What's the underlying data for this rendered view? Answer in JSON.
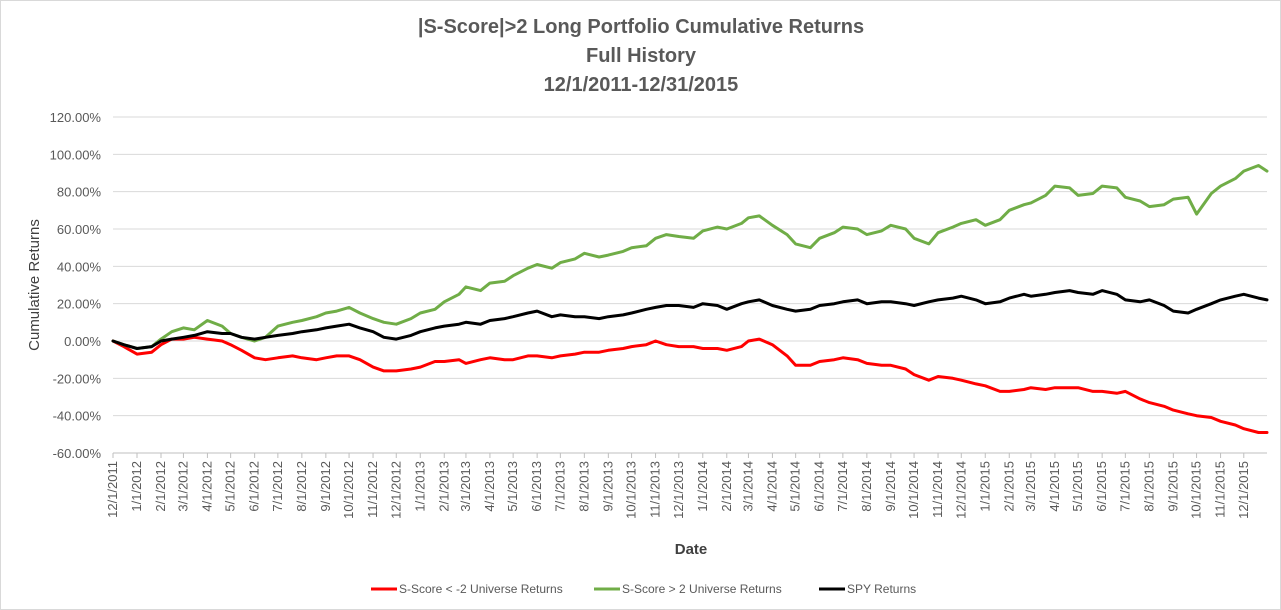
{
  "chart_data": {
    "type": "line",
    "title": [
      "|S-Score|>2 Long Portfolio Cumulative Returns",
      "Full History",
      "12/1/2011-12/31/2015"
    ],
    "xlabel": "Date",
    "ylabel": "Cumulative Returns",
    "ylim": [
      -0.6,
      1.2
    ],
    "yticks": [
      -0.6,
      -0.4,
      -0.2,
      0.0,
      0.2,
      0.4,
      0.6,
      0.8,
      1.0,
      1.2
    ],
    "ytick_labels": [
      "-60.00%",
      "-40.00%",
      "-20.00%",
      "0.00%",
      "20.00%",
      "40.00%",
      "60.00%",
      "80.00%",
      "100.00%",
      "120.00%"
    ],
    "xlim": [
      "12/1/2011",
      "12/31/2015"
    ],
    "xtick_labels": [
      "12/1/2011",
      "1/1/2012",
      "2/1/2012",
      "3/1/2012",
      "4/1/2012",
      "5/1/2012",
      "6/1/2012",
      "7/1/2012",
      "8/1/2012",
      "9/1/2012",
      "10/1/2012",
      "11/1/2012",
      "12/1/2012",
      "1/1/2013",
      "2/1/2013",
      "3/1/2013",
      "4/1/2013",
      "5/1/2013",
      "6/1/2013",
      "7/1/2013",
      "8/1/2013",
      "9/1/2013",
      "10/1/2013",
      "11/1/2013",
      "12/1/2013",
      "1/1/2014",
      "2/1/2014",
      "3/1/2014",
      "4/1/2014",
      "5/1/2014",
      "6/1/2014",
      "7/1/2014",
      "8/1/2014",
      "9/1/2014",
      "10/1/2014",
      "11/1/2014",
      "12/1/2014",
      "1/1/2015",
      "2/1/2015",
      "3/1/2015",
      "4/1/2015",
      "5/1/2015",
      "6/1/2015",
      "7/1/2015",
      "8/1/2015",
      "9/1/2015",
      "10/1/2015",
      "11/1/2015",
      "12/1/2015"
    ],
    "grid": true,
    "legend_position": "bottom",
    "series": [
      {
        "name": "S-Score < -2 Universe Returns",
        "color": "#ff0000",
        "x": [
          "12/1/2011",
          "12/15/2011",
          "1/1/2012",
          "1/20/2012",
          "2/1/2012",
          "2/15/2012",
          "3/1/2012",
          "3/15/2012",
          "4/1/2012",
          "4/20/2012",
          "5/1/2012",
          "5/15/2012",
          "6/1/2012",
          "6/15/2012",
          "7/1/2012",
          "7/20/2012",
          "8/1/2012",
          "8/20/2012",
          "9/1/2012",
          "9/15/2012",
          "10/1/2012",
          "10/15/2012",
          "11/1/2012",
          "11/15/2012",
          "12/1/2012",
          "12/20/2012",
          "1/1/2013",
          "1/20/2013",
          "2/1/2013",
          "2/20/2013",
          "3/1/2013",
          "3/20/2013",
          "4/1/2013",
          "4/20/2013",
          "5/1/2013",
          "5/20/2013",
          "6/1/2013",
          "6/20/2013",
          "7/1/2013",
          "7/20/2013",
          "8/1/2013",
          "8/20/2013",
          "9/1/2013",
          "9/20/2013",
          "10/1/2013",
          "10/20/2013",
          "11/1/2013",
          "11/15/2013",
          "12/1/2013",
          "12/20/2013",
          "1/1/2014",
          "1/20/2014",
          "2/1/2014",
          "2/20/2014",
          "3/1/2014",
          "3/15/2014",
          "4/1/2014",
          "4/20/2014",
          "5/1/2014",
          "5/20/2014",
          "6/1/2014",
          "6/20/2014",
          "7/1/2014",
          "7/20/2014",
          "8/1/2014",
          "8/20/2014",
          "9/1/2014",
          "9/20/2014",
          "10/1/2014",
          "10/20/2014",
          "11/1/2014",
          "11/20/2014",
          "12/1/2014",
          "12/20/2014",
          "1/1/2015",
          "1/20/2015",
          "2/1/2015",
          "2/20/2015",
          "3/1/2015",
          "3/20/2015",
          "4/1/2015",
          "4/20/2015",
          "5/1/2015",
          "5/20/2015",
          "6/1/2015",
          "6/20/2015",
          "7/1/2015",
          "7/20/2015",
          "8/1/2015",
          "8/20/2015",
          "9/1/2015",
          "9/20/2015",
          "10/1/2015",
          "10/20/2015",
          "11/1/2015",
          "11/20/2015",
          "12/1/2015",
          "12/20/2015",
          "12/31/2015"
        ],
        "y": [
          0.0,
          -0.03,
          -0.07,
          -0.06,
          -0.02,
          0.01,
          0.01,
          0.02,
          0.01,
          0.0,
          -0.02,
          -0.05,
          -0.09,
          -0.1,
          -0.09,
          -0.08,
          -0.09,
          -0.1,
          -0.09,
          -0.08,
          -0.08,
          -0.1,
          -0.14,
          -0.16,
          -0.16,
          -0.15,
          -0.14,
          -0.11,
          -0.11,
          -0.1,
          -0.12,
          -0.1,
          -0.09,
          -0.1,
          -0.1,
          -0.08,
          -0.08,
          -0.09,
          -0.08,
          -0.07,
          -0.06,
          -0.06,
          -0.05,
          -0.04,
          -0.03,
          -0.02,
          0.0,
          -0.02,
          -0.03,
          -0.03,
          -0.04,
          -0.04,
          -0.05,
          -0.03,
          0.0,
          0.01,
          -0.02,
          -0.08,
          -0.13,
          -0.13,
          -0.11,
          -0.1,
          -0.09,
          -0.1,
          -0.12,
          -0.13,
          -0.13,
          -0.15,
          -0.18,
          -0.21,
          -0.19,
          -0.2,
          -0.21,
          -0.23,
          -0.24,
          -0.27,
          -0.27,
          -0.26,
          -0.25,
          -0.26,
          -0.25,
          -0.25,
          -0.25,
          -0.27,
          -0.27,
          -0.28,
          -0.27,
          -0.31,
          -0.33,
          -0.35,
          -0.37,
          -0.39,
          -0.4,
          -0.41,
          -0.43,
          -0.45,
          -0.47,
          -0.49,
          -0.49
        ]
      },
      {
        "name": "S-Score >  2 Universe Returns",
        "color": "#70ad47",
        "x": [
          "12/1/2011",
          "12/15/2011",
          "1/1/2012",
          "1/20/2012",
          "2/1/2012",
          "2/15/2012",
          "3/1/2012",
          "3/15/2012",
          "4/1/2012",
          "4/20/2012",
          "5/1/2012",
          "5/15/2012",
          "6/1/2012",
          "6/15/2012",
          "7/1/2012",
          "7/20/2012",
          "8/1/2012",
          "8/20/2012",
          "9/1/2012",
          "9/15/2012",
          "10/1/2012",
          "10/15/2012",
          "11/1/2012",
          "11/15/2012",
          "12/1/2012",
          "12/20/2012",
          "1/1/2013",
          "1/20/2013",
          "2/1/2013",
          "2/20/2013",
          "3/1/2013",
          "3/20/2013",
          "4/1/2013",
          "4/20/2013",
          "5/1/2013",
          "5/20/2013",
          "6/1/2013",
          "6/20/2013",
          "7/1/2013",
          "7/20/2013",
          "8/1/2013",
          "8/20/2013",
          "9/1/2013",
          "9/20/2013",
          "10/1/2013",
          "10/20/2013",
          "11/1/2013",
          "11/15/2013",
          "12/1/2013",
          "12/20/2013",
          "1/1/2014",
          "1/20/2014",
          "2/1/2014",
          "2/20/2014",
          "3/1/2014",
          "3/15/2014",
          "4/1/2014",
          "4/20/2014",
          "5/1/2014",
          "5/20/2014",
          "6/1/2014",
          "6/20/2014",
          "7/1/2014",
          "7/20/2014",
          "8/1/2014",
          "8/20/2014",
          "9/1/2014",
          "9/20/2014",
          "10/1/2014",
          "10/20/2014",
          "11/1/2014",
          "11/20/2014",
          "12/1/2014",
          "12/20/2014",
          "1/1/2015",
          "1/20/2015",
          "2/1/2015",
          "2/20/2015",
          "3/1/2015",
          "3/20/2015",
          "4/1/2015",
          "4/20/2015",
          "5/1/2015",
          "5/20/2015",
          "6/1/2015",
          "6/20/2015",
          "7/1/2015",
          "7/20/2015",
          "8/1/2015",
          "8/20/2015",
          "9/1/2015",
          "9/20/2015",
          "10/1/2015",
          "10/20/2015",
          "11/1/2015",
          "11/20/2015",
          "12/1/2015",
          "12/20/2015",
          "12/31/2015"
        ],
        "y": [
          0.0,
          -0.02,
          -0.04,
          -0.03,
          0.01,
          0.05,
          0.07,
          0.06,
          0.11,
          0.08,
          0.04,
          0.02,
          0.0,
          0.02,
          0.08,
          0.1,
          0.11,
          0.13,
          0.15,
          0.16,
          0.18,
          0.15,
          0.12,
          0.1,
          0.09,
          0.12,
          0.15,
          0.17,
          0.21,
          0.25,
          0.29,
          0.27,
          0.31,
          0.32,
          0.35,
          0.39,
          0.41,
          0.39,
          0.42,
          0.44,
          0.47,
          0.45,
          0.46,
          0.48,
          0.5,
          0.51,
          0.55,
          0.57,
          0.56,
          0.55,
          0.59,
          0.61,
          0.6,
          0.63,
          0.66,
          0.67,
          0.62,
          0.57,
          0.52,
          0.5,
          0.55,
          0.58,
          0.61,
          0.6,
          0.57,
          0.59,
          0.62,
          0.6,
          0.55,
          0.52,
          0.58,
          0.61,
          0.63,
          0.65,
          0.62,
          0.65,
          0.7,
          0.73,
          0.74,
          0.78,
          0.83,
          0.82,
          0.78,
          0.79,
          0.83,
          0.82,
          0.77,
          0.75,
          0.72,
          0.73,
          0.76,
          0.77,
          0.68,
          0.79,
          0.83,
          0.87,
          0.91,
          0.94,
          0.91
        ]
      },
      {
        "name": "SPY Returns",
        "color": "#000000",
        "x": [
          "12/1/2011",
          "12/15/2011",
          "1/1/2012",
          "1/20/2012",
          "2/1/2012",
          "2/15/2012",
          "3/1/2012",
          "3/15/2012",
          "4/1/2012",
          "4/20/2012",
          "5/1/2012",
          "5/15/2012",
          "6/1/2012",
          "6/15/2012",
          "7/1/2012",
          "7/20/2012",
          "8/1/2012",
          "8/20/2012",
          "9/1/2012",
          "9/15/2012",
          "10/1/2012",
          "10/15/2012",
          "11/1/2012",
          "11/15/2012",
          "12/1/2012",
          "12/20/2012",
          "1/1/2013",
          "1/20/2013",
          "2/1/2013",
          "2/20/2013",
          "3/1/2013",
          "3/20/2013",
          "4/1/2013",
          "4/20/2013",
          "5/1/2013",
          "5/20/2013",
          "6/1/2013",
          "6/20/2013",
          "7/1/2013",
          "7/20/2013",
          "8/1/2013",
          "8/20/2013",
          "9/1/2013",
          "9/20/2013",
          "10/1/2013",
          "10/20/2013",
          "11/1/2013",
          "11/15/2013",
          "12/1/2013",
          "12/20/2013",
          "1/1/2014",
          "1/20/2014",
          "2/1/2014",
          "2/20/2014",
          "3/1/2014",
          "3/15/2014",
          "4/1/2014",
          "4/20/2014",
          "5/1/2014",
          "5/20/2014",
          "6/1/2014",
          "6/20/2014",
          "7/1/2014",
          "7/20/2014",
          "8/1/2014",
          "8/20/2014",
          "9/1/2014",
          "9/20/2014",
          "10/1/2014",
          "10/20/2014",
          "11/1/2014",
          "11/20/2014",
          "12/1/2014",
          "12/20/2014",
          "1/1/2015",
          "1/20/2015",
          "2/1/2015",
          "2/20/2015",
          "3/1/2015",
          "3/20/2015",
          "4/1/2015",
          "4/20/2015",
          "5/1/2015",
          "5/20/2015",
          "6/1/2015",
          "6/20/2015",
          "7/1/2015",
          "7/20/2015",
          "8/1/2015",
          "8/20/2015",
          "9/1/2015",
          "9/20/2015",
          "10/1/2015",
          "10/20/2015",
          "11/1/2015",
          "11/20/2015",
          "12/1/2015",
          "12/20/2015",
          "12/31/2015"
        ],
        "y": [
          0.0,
          -0.02,
          -0.04,
          -0.03,
          0.0,
          0.01,
          0.02,
          0.03,
          0.05,
          0.04,
          0.04,
          0.02,
          0.01,
          0.02,
          0.03,
          0.04,
          0.05,
          0.06,
          0.07,
          0.08,
          0.09,
          0.07,
          0.05,
          0.02,
          0.01,
          0.03,
          0.05,
          0.07,
          0.08,
          0.09,
          0.1,
          0.09,
          0.11,
          0.12,
          0.13,
          0.15,
          0.16,
          0.13,
          0.14,
          0.13,
          0.13,
          0.12,
          0.13,
          0.14,
          0.15,
          0.17,
          0.18,
          0.19,
          0.19,
          0.18,
          0.2,
          0.19,
          0.17,
          0.2,
          0.21,
          0.22,
          0.19,
          0.17,
          0.16,
          0.17,
          0.19,
          0.2,
          0.21,
          0.22,
          0.2,
          0.21,
          0.21,
          0.2,
          0.19,
          0.21,
          0.22,
          0.23,
          0.24,
          0.22,
          0.2,
          0.21,
          0.23,
          0.25,
          0.24,
          0.25,
          0.26,
          0.27,
          0.26,
          0.25,
          0.27,
          0.25,
          0.22,
          0.21,
          0.22,
          0.19,
          0.16,
          0.15,
          0.17,
          0.2,
          0.22,
          0.24,
          0.25,
          0.23,
          0.22
        ]
      }
    ]
  }
}
